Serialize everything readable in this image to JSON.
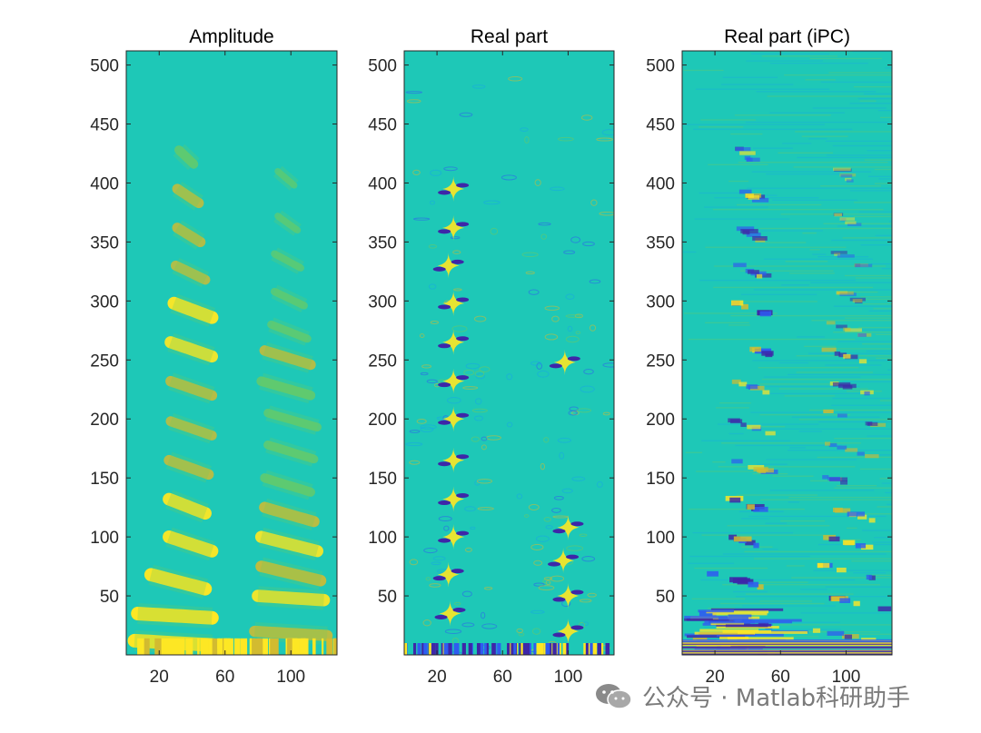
{
  "chart_data": [
    {
      "type": "heatmap",
      "title": "Amplitude",
      "variant": "amplitude",
      "xlabel": "",
      "ylabel": "",
      "xlim": [
        0,
        128
      ],
      "ylim": [
        0,
        512
      ],
      "xticks": [
        20,
        60,
        100
      ],
      "xtick_labels": [
        "20",
        "60",
        "100"
      ],
      "yticks": [
        50,
        100,
        150,
        200,
        250,
        300,
        350,
        400,
        450,
        500
      ],
      "ytick_labels": [
        "50",
        "100",
        "150",
        "200",
        "250",
        "300",
        "350",
        "400",
        "450",
        "500"
      ],
      "colormap": [
        "#3e26a8",
        "#2f5cf0",
        "#18a8e6",
        "#1ec8b7",
        "#6dcb61",
        "#d2bb30",
        "#fde724"
      ],
      "background_color": "#1ec8b7",
      "bands": [
        {
          "name": "left",
          "y": [
            12,
            35,
            68,
            100,
            132,
            165,
            198,
            232,
            265,
            298,
            330,
            362,
            395,
            428
          ],
          "x_start": [
            5,
            7,
            15,
            26,
            26,
            26,
            27,
            27,
            27,
            29,
            30,
            31,
            31,
            32
          ],
          "x_end": [
            52,
            52,
            48,
            52,
            48,
            50,
            52,
            52,
            52,
            52,
            48,
            45,
            44,
            41
          ],
          "intensity": [
            1.0,
            1.0,
            0.95,
            0.9,
            0.88,
            0.62,
            0.55,
            0.62,
            0.82,
            0.92,
            0.55,
            0.6,
            0.58,
            0.45
          ]
        },
        {
          "name": "right",
          "y": [
            20,
            50,
            75,
            100,
            125,
            150,
            178,
            205,
            232,
            258,
            280,
            308,
            340,
            372,
            410
          ],
          "x_start": [
            78,
            80,
            82,
            82,
            84,
            84,
            86,
            86,
            82,
            84,
            88,
            90,
            90,
            92,
            92
          ],
          "x_end": [
            122,
            120,
            118,
            116,
            114,
            112,
            114,
            116,
            112,
            112,
            110,
            108,
            106,
            104,
            102
          ],
          "intensity": [
            0.7,
            0.85,
            0.75,
            0.82,
            0.7,
            0.45,
            0.4,
            0.38,
            0.5,
            0.6,
            0.3,
            0.25,
            0.2,
            0.15,
            0.12
          ]
        }
      ]
    },
    {
      "type": "heatmap",
      "title": "Real part",
      "variant": "real",
      "xlabel": "",
      "ylabel": "",
      "xlim": [
        0,
        128
      ],
      "ylim": [
        0,
        512
      ],
      "xticks": [
        20,
        60,
        100
      ],
      "xtick_labels": [
        "20",
        "60",
        "100"
      ],
      "yticks": [
        50,
        100,
        150,
        200,
        250,
        300,
        350,
        400,
        450,
        500
      ],
      "ytick_labels": [
        "50",
        "100",
        "150",
        "200",
        "250",
        "300",
        "350",
        "400",
        "450",
        "500"
      ],
      "colormap": [
        "#3e26a8",
        "#2f5cf0",
        "#18a8e6",
        "#1ec8b7",
        "#6dcb61",
        "#d2bb30",
        "#fde724"
      ],
      "background_color": "#1ec8b7",
      "stars": [
        {
          "x": 30,
          "y": 298
        },
        {
          "x": 30,
          "y": 265
        },
        {
          "x": 30,
          "y": 232
        },
        {
          "x": 30,
          "y": 200
        },
        {
          "x": 30,
          "y": 165
        },
        {
          "x": 30,
          "y": 132
        },
        {
          "x": 30,
          "y": 100
        },
        {
          "x": 27,
          "y": 68
        },
        {
          "x": 28,
          "y": 35
        },
        {
          "x": 27,
          "y": 330
        },
        {
          "x": 30,
          "y": 362
        },
        {
          "x": 30,
          "y": 395
        },
        {
          "x": 98,
          "y": 248
        },
        {
          "x": 100,
          "y": 108
        },
        {
          "x": 97,
          "y": 80
        },
        {
          "x": 100,
          "y": 50
        },
        {
          "x": 100,
          "y": 20
        }
      ]
    },
    {
      "type": "heatmap",
      "title": "Real part (iPC)",
      "variant": "ipc",
      "xlabel": "",
      "ylabel": "",
      "xlim": [
        0,
        128
      ],
      "ylim": [
        0,
        512
      ],
      "xticks": [
        20,
        60,
        100
      ],
      "xtick_labels": [
        "20",
        "60",
        "100"
      ],
      "yticks": [
        50,
        100,
        150,
        200,
        250,
        300,
        350,
        400,
        450,
        500
      ],
      "ytick_labels": [
        "50",
        "100",
        "150",
        "200",
        "250",
        "300",
        "350",
        "400",
        "450",
        "500"
      ],
      "colormap": [
        "#3e26a8",
        "#2f5cf0",
        "#18a8e6",
        "#1ec8b7",
        "#6dcb61",
        "#d2bb30",
        "#fde724"
      ],
      "background_color": "#1ec8b7"
    }
  ],
  "watermark": {
    "text": "公众号 · Matlab科研助手",
    "icon": "wechat-icon"
  }
}
